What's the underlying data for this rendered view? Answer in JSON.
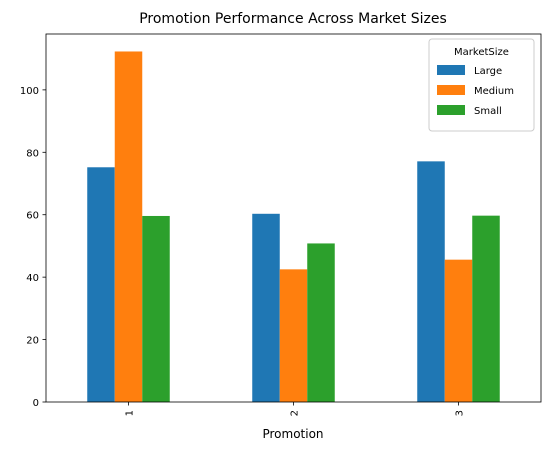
{
  "chart_data": {
    "type": "bar",
    "title": "Promotion Performance Across Market Sizes",
    "xlabel": "Promotion",
    "ylabel": "",
    "categories": [
      "1",
      "2",
      "3"
    ],
    "series": [
      {
        "name": "Large",
        "values": [
          75.2,
          60.3,
          77.1
        ],
        "color": "#1f77b4"
      },
      {
        "name": "Medium",
        "values": [
          112.3,
          42.5,
          45.6
        ],
        "color": "#ff7f0e"
      },
      {
        "name": "Small",
        "values": [
          59.6,
          50.8,
          59.7
        ],
        "color": "#2ca02c"
      }
    ],
    "ylim": [
      0,
      117.9
    ],
    "yticks": [
      0,
      20,
      40,
      60,
      80,
      100
    ],
    "legend": {
      "title": "MarketSize",
      "placement": "top-right"
    },
    "grid": false
  }
}
